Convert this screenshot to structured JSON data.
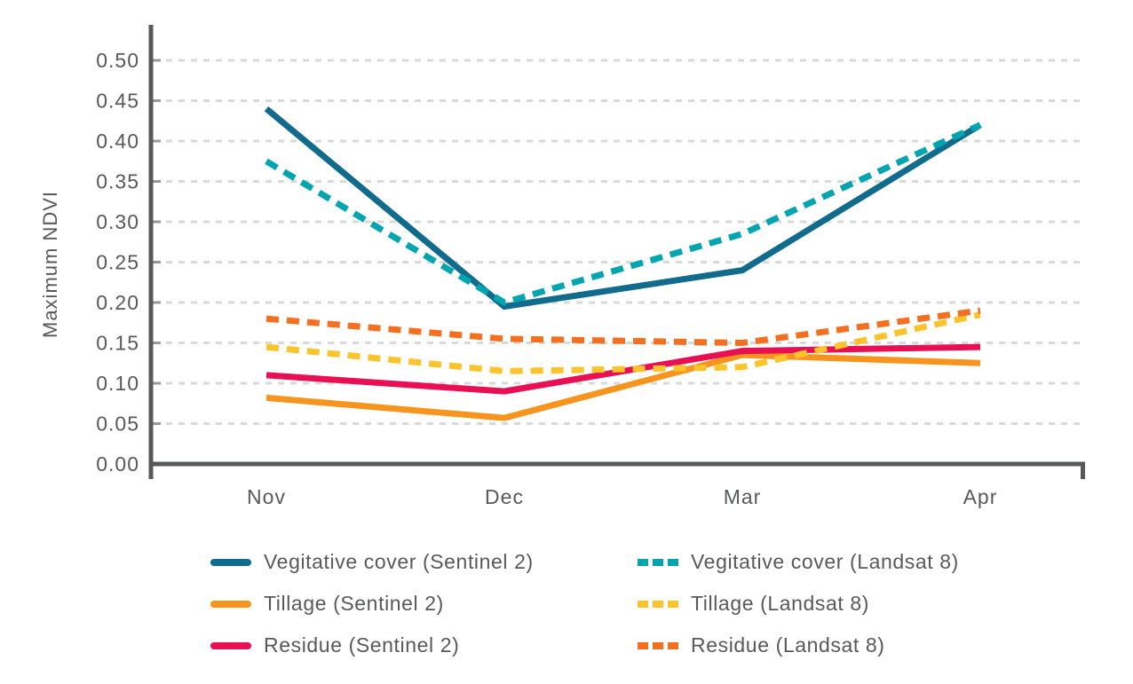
{
  "colors": {
    "axis": "#58595b",
    "text": "#58595b",
    "grid": "#d9d9d9",
    "tick": "#97989a",
    "background": "#ffffff"
  },
  "chart_data": {
    "type": "line",
    "title": "",
    "xlabel": "",
    "ylabel": "Maximum NDVI",
    "categories": [
      "Nov",
      "Dec",
      "Mar",
      "Apr"
    ],
    "ylim": [
      0,
      0.5
    ],
    "ytick_step": 0.05,
    "ytick_labels": [
      "0.00",
      "0.05",
      "0.10",
      "0.15",
      "0.20",
      "0.25",
      "0.30",
      "0.35",
      "0.40",
      "0.45",
      "0.50"
    ],
    "grid": "horizontal dashed gridlines",
    "legend_position": "bottom, two columns",
    "series": [
      {
        "name": "Vegitative cover (Sentinel 2)",
        "color": "#116b8c",
        "style": "solid",
        "values": [
          0.44,
          0.195,
          0.24,
          0.42
        ]
      },
      {
        "name": "Tillage (Sentinel 2)",
        "color": "#f7941e",
        "style": "solid",
        "values": [
          0.082,
          0.057,
          0.135,
          0.125
        ]
      },
      {
        "name": "Residue (Sentinel 2)",
        "color": "#e81053",
        "style": "solid",
        "values": [
          0.11,
          0.09,
          0.14,
          0.145
        ]
      },
      {
        "name": "Vegitative cover (Landsat 8)",
        "color": "#00a5b0",
        "style": "dashed",
        "values": [
          0.375,
          0.2,
          0.285,
          0.42
        ]
      },
      {
        "name": "Tillage (Landsat 8)",
        "color": "#fdc32b",
        "style": "dashed",
        "values": [
          0.145,
          0.115,
          0.12,
          0.185
        ]
      },
      {
        "name": "Residue (Landsat 8)",
        "color": "#f46f1f",
        "style": "dashed",
        "values": [
          0.18,
          0.155,
          0.15,
          0.19
        ]
      }
    ]
  }
}
